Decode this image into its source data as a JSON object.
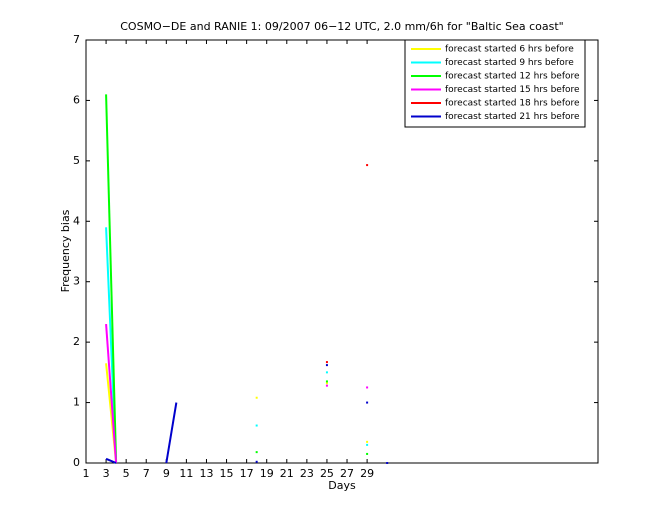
{
  "chart_data": {
    "type": "line",
    "title": "COSMO−DE and RANIE 1: 09/2007 06−12 UTC, 2.0 mm/6h for \"Baltic Sea coast\"",
    "x_label": "Days",
    "y_label": "Frequency bias",
    "xlim": [
      1,
      52
    ],
    "xticks": [
      1,
      3,
      5,
      7,
      9,
      11,
      13,
      15,
      17,
      19,
      21,
      23,
      25,
      27,
      29
    ],
    "ylim": [
      0,
      7
    ],
    "yticks": [
      0,
      1,
      2,
      3,
      4,
      5,
      6,
      7
    ],
    "legend": "upper right",
    "x": [
      3,
      4,
      5,
      9,
      10,
      11,
      18,
      19,
      25,
      26,
      29,
      30,
      31
    ],
    "series": [
      {
        "name": "forecast started 6 hrs before",
        "color": "#ffff00",
        "values": [
          1.65,
          0,
          null,
          null,
          null,
          null,
          1.08,
          null,
          1.32,
          null,
          0.35,
          null,
          null
        ]
      },
      {
        "name": "forecast started 9 hrs before",
        "color": "#00ffff",
        "values": [
          3.9,
          0,
          null,
          null,
          null,
          null,
          0.62,
          null,
          1.5,
          null,
          0.3,
          null,
          null
        ]
      },
      {
        "name": "forecast started 12 hrs before",
        "color": "#00ff00",
        "values": [
          6.1,
          0,
          null,
          null,
          null,
          null,
          0.18,
          null,
          1.35,
          null,
          0.15,
          null,
          null
        ]
      },
      {
        "name": "forecast started 15 hrs before",
        "color": "#ff00ff",
        "values": [
          2.3,
          0,
          null,
          null,
          null,
          null,
          null,
          null,
          1.28,
          null,
          1.25,
          null,
          null
        ]
      },
      {
        "name": "forecast started 18 hrs before",
        "color": "#ff0000",
        "values": [
          null,
          null,
          null,
          null,
          null,
          null,
          null,
          null,
          1.67,
          null,
          4.93,
          null,
          null
        ]
      },
      {
        "name": "forecast started 21 hrs before",
        "color": "#0000cc",
        "values": [
          0.07,
          0,
          null,
          0,
          1,
          null,
          0.02,
          null,
          1.62,
          null,
          1.0,
          null,
          0
        ]
      }
    ]
  }
}
